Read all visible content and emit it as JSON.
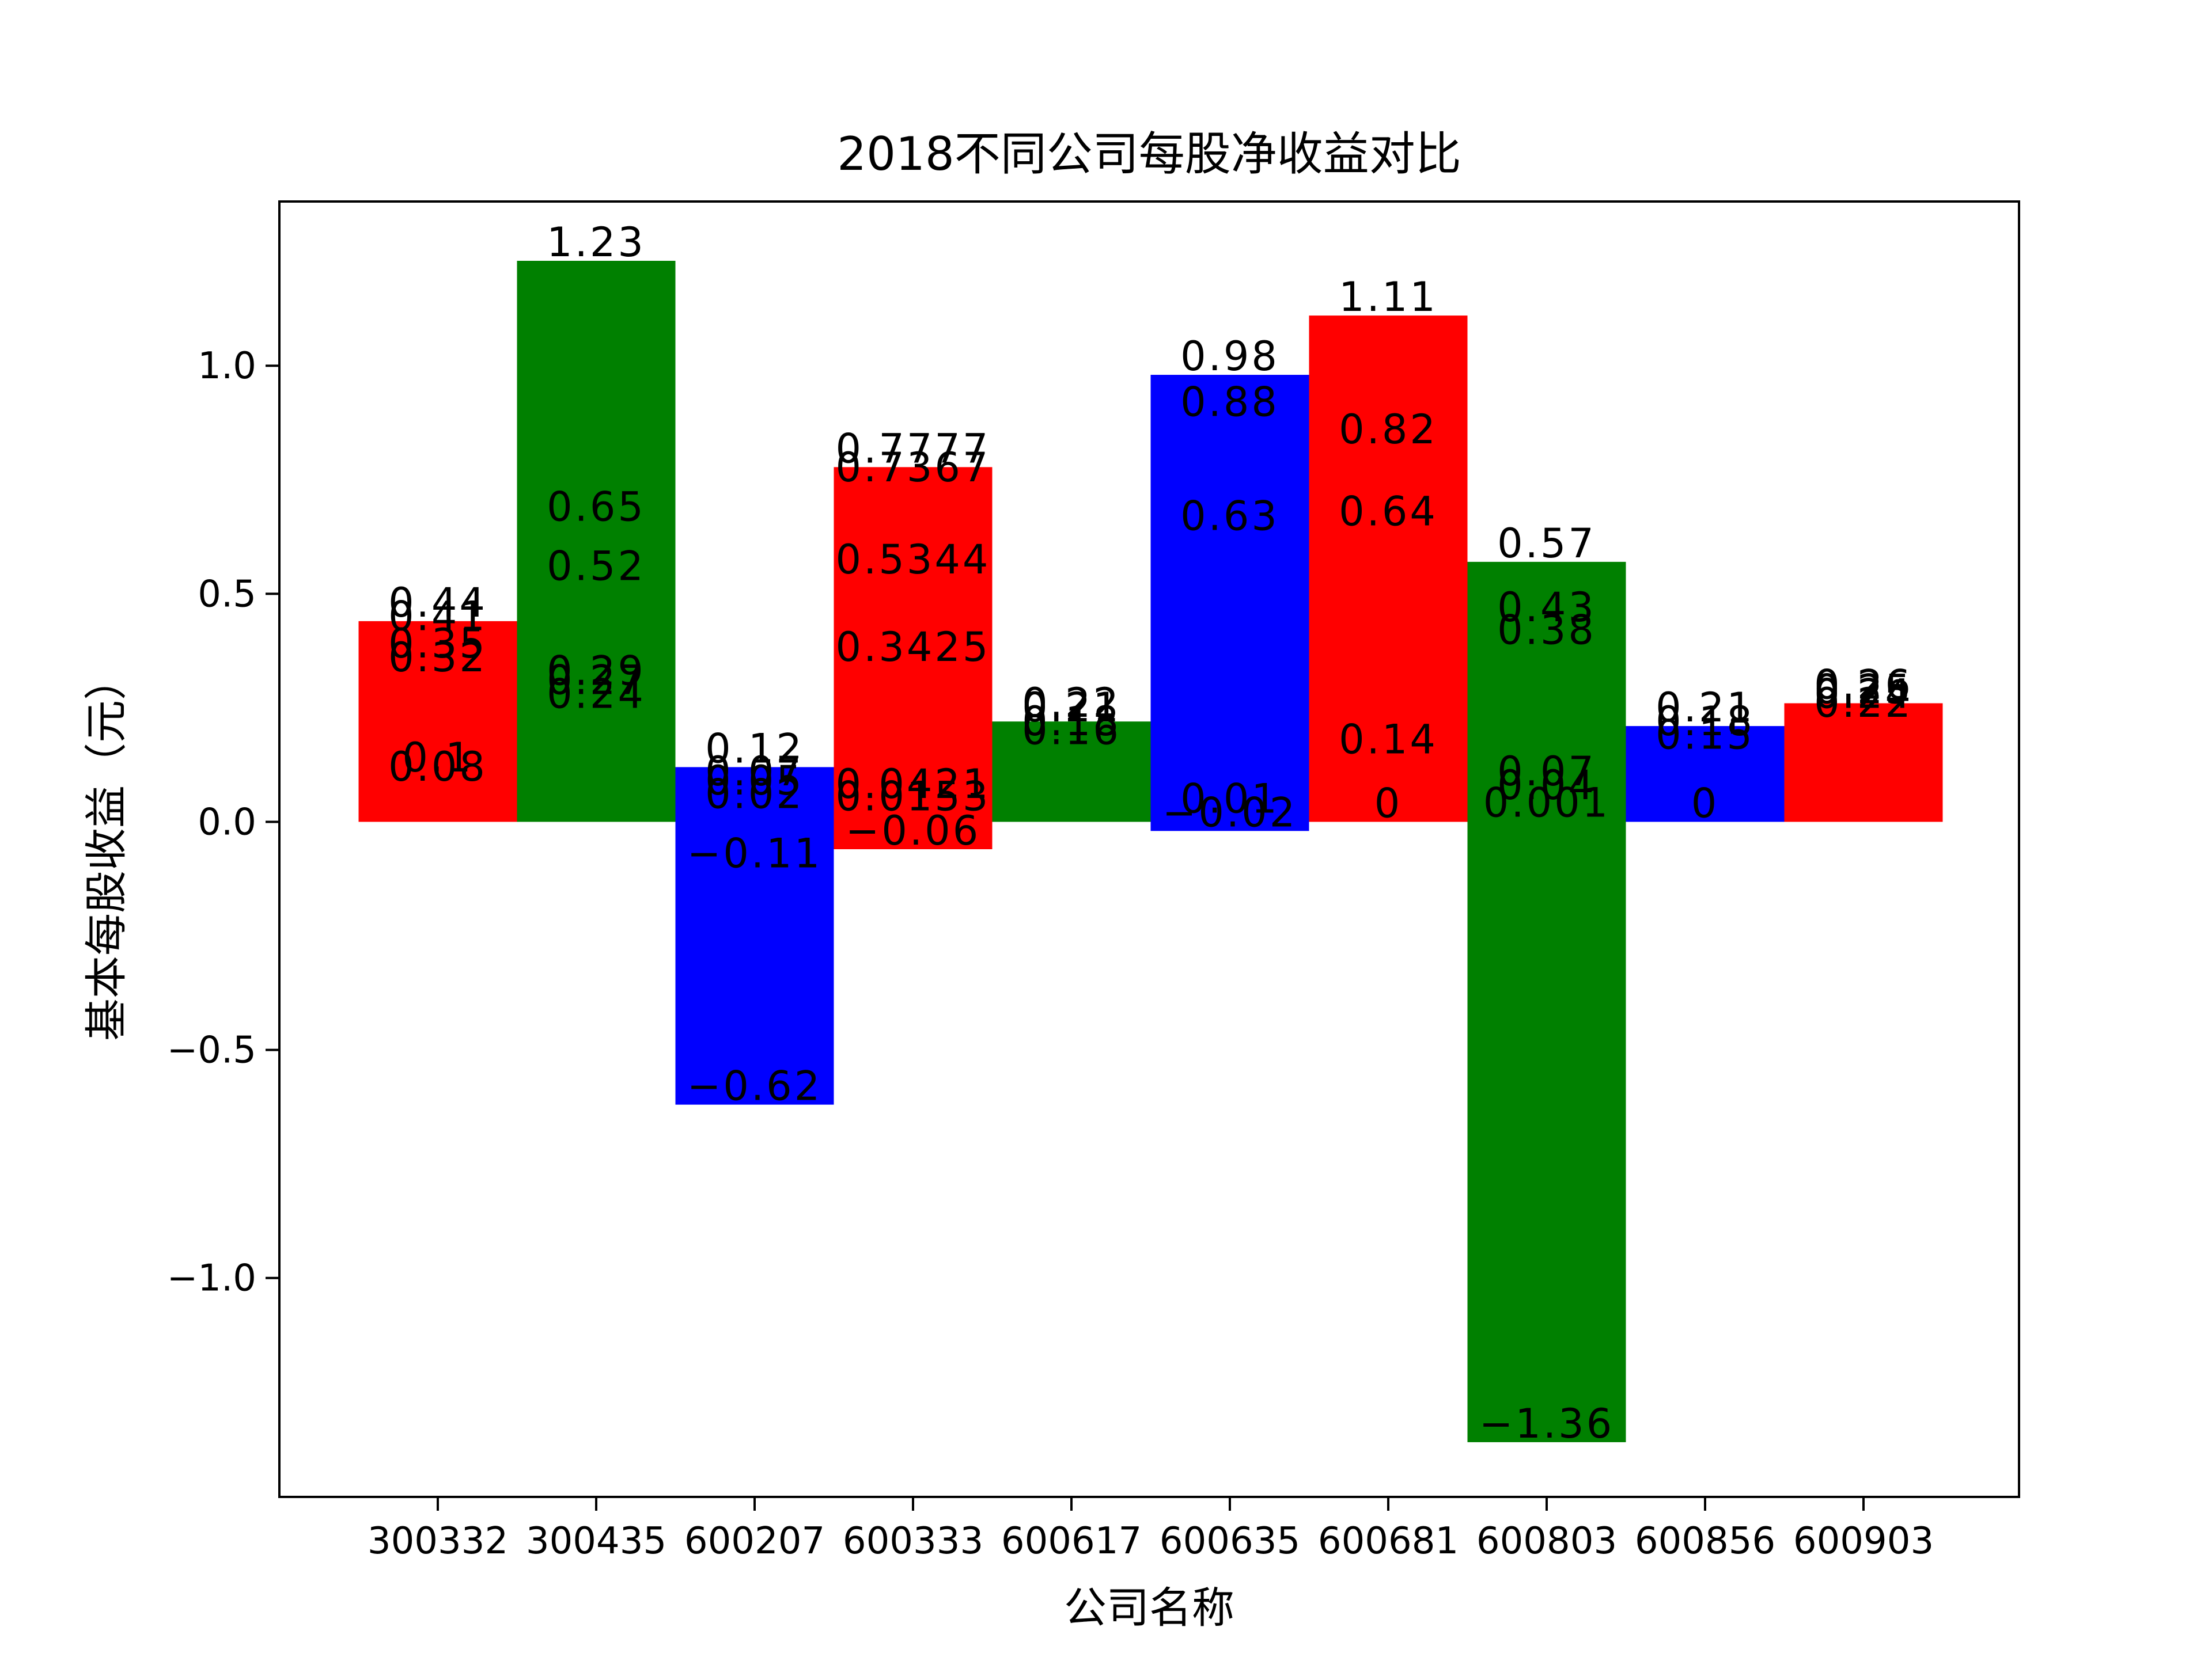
{
  "chart_data": {
    "type": "bar",
    "title": "2018不同公司每股净收益对比",
    "xlabel": "公司名称",
    "ylabel": "基本每股收益（元）",
    "ylim": [
      -1.48,
      1.36
    ],
    "yticks": [
      -1.0,
      -0.5,
      0.0,
      0.5,
      1.0
    ],
    "ytick_labels": [
      "−1.0",
      "−0.5",
      "0.0",
      "0.5",
      "1.0"
    ],
    "grid": false,
    "categories": [
      "300332",
      "300435",
      "600207",
      "600333",
      "600617",
      "600635",
      "600681",
      "600803",
      "600856",
      "600903"
    ],
    "bars": [
      {
        "category": "300332",
        "values": [
          0.44,
          0.41,
          0.35,
          0.32,
          0.1,
          0.08
        ],
        "color": "#ff0000"
      },
      {
        "category": "300435",
        "values": [
          1.23,
          0.65,
          0.52,
          0.29,
          0.27,
          0.24
        ],
        "color": "#008000"
      },
      {
        "category": "600207",
        "values": [
          0.12,
          0.07,
          0.05,
          0.02,
          -0.11,
          -0.62
        ],
        "color": "#0000ff"
      },
      {
        "category": "600333",
        "values": [
          0.7777,
          0.7367,
          0.5344,
          0.3425,
          0.0421,
          0.0153,
          -0.06
        ],
        "color": "#ff0000"
      },
      {
        "category": "600617",
        "values": [
          0.22,
          0.21,
          0.18,
          0.16
        ],
        "color": "#008000"
      },
      {
        "category": "600635",
        "values": [
          0.98,
          0.88,
          0.63,
          0.01,
          -0.02
        ],
        "color": "#0000ff"
      },
      {
        "category": "600681",
        "values": [
          1.11,
          0.82,
          0.64,
          0.14,
          0.0
        ],
        "color": "#ff0000"
      },
      {
        "category": "600803",
        "values": [
          0.57,
          0.43,
          0.38,
          0.07,
          0.04,
          0.001,
          -1.36
        ],
        "color": "#008000"
      },
      {
        "category": "600856",
        "values": [
          0.21,
          0.18,
          0.15,
          0.0
        ],
        "color": "#0000ff"
      },
      {
        "category": "600903",
        "values": [
          0.26,
          0.25,
          0.24,
          0.22
        ],
        "color": "#ff0000"
      }
    ]
  }
}
